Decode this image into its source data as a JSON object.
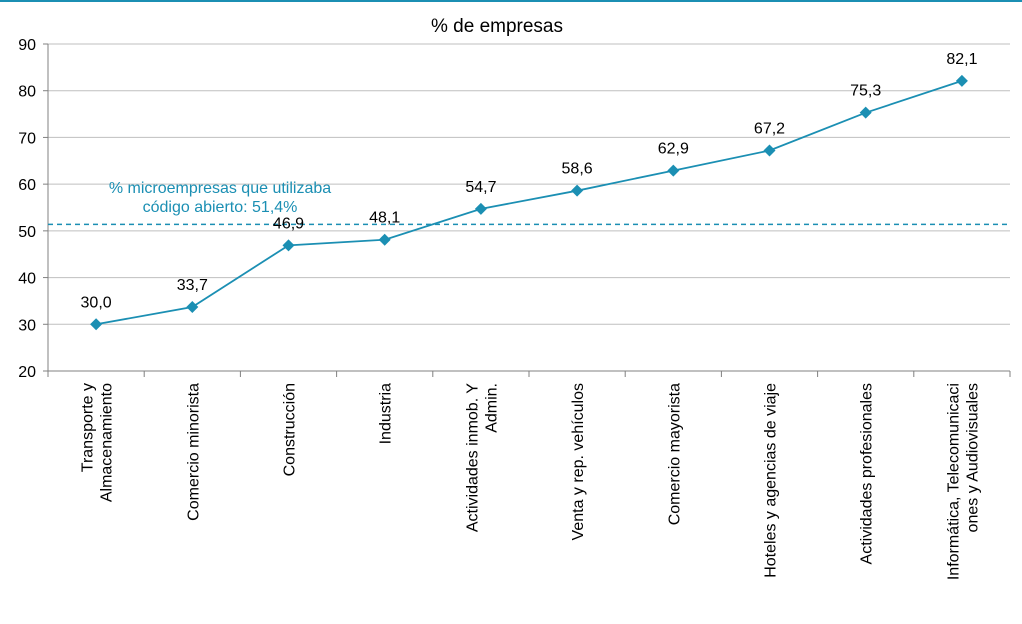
{
  "colors": {
    "series": "#1b8fb3",
    "reference": "#1b8fb3",
    "grid": "#bfbfbf",
    "axis": "#808080",
    "text": "#000000"
  },
  "chart_data": {
    "type": "line",
    "title": "% de empresas",
    "xlabel": "",
    "ylabel": "",
    "ylim": [
      20,
      90
    ],
    "yticks": [
      20,
      30,
      40,
      50,
      60,
      70,
      80,
      90
    ],
    "grid": true,
    "legend": "none",
    "categories": [
      [
        "Transporte y",
        "Almacenamiento"
      ],
      [
        "Comercio minorista"
      ],
      [
        "Construcción"
      ],
      [
        "Industria"
      ],
      [
        "Actividades inmob. Y",
        "Admin."
      ],
      [
        "Venta y rep. vehículos"
      ],
      [
        "Comercio mayorista"
      ],
      [
        "Hoteles y agencias de viaje"
      ],
      [
        "Actividades profesionales"
      ],
      [
        "Informática, Telecomunicaci",
        "ones y Audiovisuales"
      ]
    ],
    "series": [
      {
        "values": [
          30.0,
          33.7,
          46.9,
          48.1,
          54.7,
          58.6,
          62.9,
          67.2,
          75.3,
          82.1
        ],
        "data_labels": [
          "30,0",
          "33,7",
          "46,9",
          "48,1",
          "54,7",
          "58,6",
          "62,9",
          "67,2",
          "75,3",
          "82,1"
        ]
      }
    ],
    "reference_line": {
      "value": 51.4,
      "label": [
        "% microempresas que utilizaba",
        "código abierto: 51,4%"
      ]
    }
  }
}
